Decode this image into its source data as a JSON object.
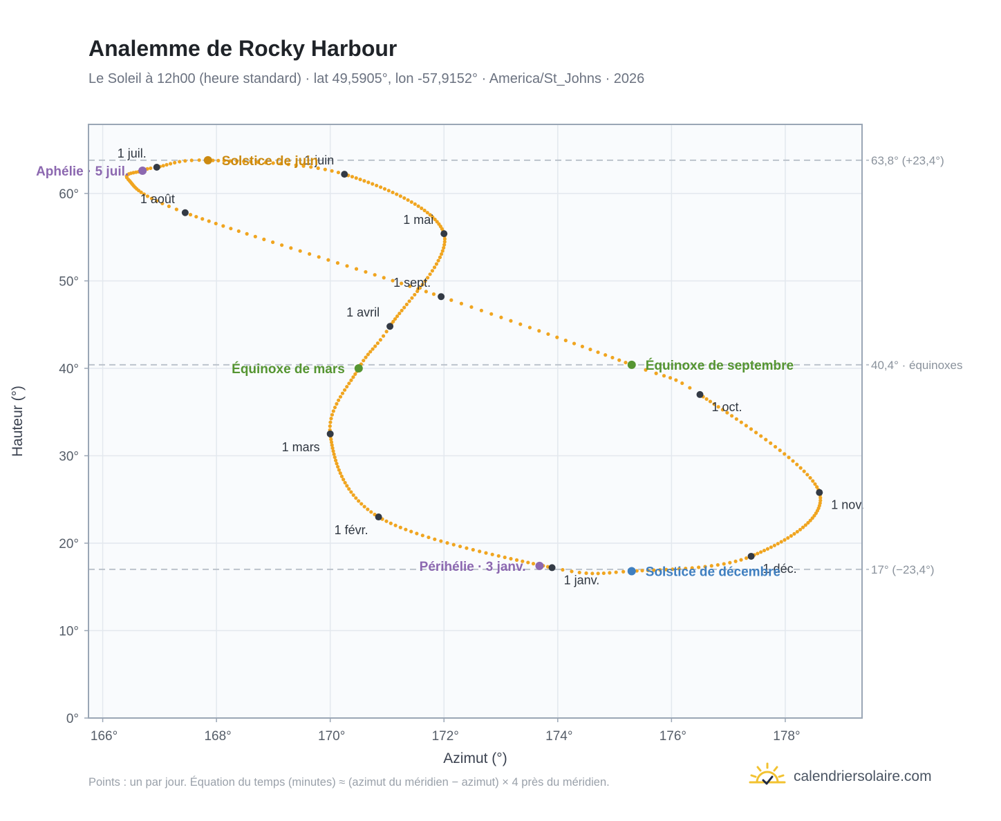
{
  "header": {
    "title": "Analemme de Rocky Harbour",
    "subtitle": "Le Soleil à 12h00 (heure standard) · lat 49,5905°, lon -57,9152° · America/St_Johns · 2026"
  },
  "footer": {
    "note": "Points : un par jour. Équation du temps (minutes) ≈ (azimut du méridien − azimut) × 4 près du méridien.",
    "brand": "calendriersolaire.com",
    "brand_icon": "sun-logo-icon"
  },
  "colors": {
    "curve": "#f0a520",
    "month_dot": "#333a45",
    "equinox": "#559531",
    "june_solstice": "#cc8a10",
    "december_solstice": "#3f7fc0",
    "aphelion_perihelion": "#8c68b0",
    "reference_line": "#bcc3cc",
    "frame": "#9aa6b5",
    "plot_bg": "#f9fbfd"
  },
  "chart_data": {
    "type": "scatter",
    "xlabel": "Azimut (°)",
    "ylabel": "Hauteur (°)",
    "xlim": [
      165.75,
      179.35
    ],
    "ylim": [
      0,
      67.9
    ],
    "xticks": [
      166,
      168,
      170,
      172,
      174,
      176,
      178
    ],
    "xtick_labels": [
      "166°",
      "168°",
      "170°",
      "172°",
      "174°",
      "176°",
      "178°"
    ],
    "yticks": [
      0,
      10,
      20,
      30,
      40,
      50,
      60
    ],
    "ytick_labels": [
      "0°",
      "10°",
      "20°",
      "30°",
      "40°",
      "50°",
      "60°"
    ],
    "grid": true,
    "series": [
      {
        "points_per_day": true,
        "days_in_year": 365,
        "anchors": [
          {
            "day": 1,
            "azimuth": 173.9,
            "altitude": 17.2
          },
          {
            "day": 32,
            "azimuth": 170.85,
            "altitude": 23.0
          },
          {
            "day": 60,
            "azimuth": 170.0,
            "altitude": 32.5
          },
          {
            "day": 79,
            "azimuth": 170.5,
            "altitude": 40.0
          },
          {
            "day": 91,
            "azimuth": 171.05,
            "altitude": 44.8
          },
          {
            "day": 121,
            "azimuth": 172.0,
            "altitude": 55.4
          },
          {
            "day": 152,
            "azimuth": 170.25,
            "altitude": 62.2
          },
          {
            "day": 172,
            "azimuth": 167.85,
            "altitude": 63.8
          },
          {
            "day": 182,
            "azimuth": 166.95,
            "altitude": 63.0
          },
          {
            "day": 186,
            "azimuth": 166.7,
            "altitude": 62.6
          },
          {
            "day": 196,
            "azimuth": 166.45,
            "altitude": 61.6
          },
          {
            "day": 213,
            "azimuth": 167.45,
            "altitude": 57.8
          },
          {
            "day": 244,
            "azimuth": 171.95,
            "altitude": 48.2
          },
          {
            "day": 266,
            "azimuth": 175.3,
            "altitude": 40.4
          },
          {
            "day": 274,
            "azimuth": 176.5,
            "altitude": 37.0
          },
          {
            "day": 305,
            "azimuth": 178.6,
            "altitude": 25.8
          },
          {
            "day": 335,
            "azimuth": 177.4,
            "altitude": 18.5
          },
          {
            "day": 355,
            "azimuth": 175.3,
            "altitude": 16.8
          },
          {
            "day": 366,
            "azimuth": 173.9,
            "altitude": 17.2
          }
        ]
      }
    ],
    "month_markers": [
      {
        "label": "1 janv.",
        "azimuth": 173.9,
        "altitude": 17.2,
        "label_pos": "below-right"
      },
      {
        "label": "1 févr.",
        "azimuth": 170.85,
        "altitude": 23.0,
        "label_pos": "below-left"
      },
      {
        "label": "1 mars",
        "azimuth": 170.0,
        "altitude": 32.5,
        "label_pos": "below-left"
      },
      {
        "label": "1 avril",
        "azimuth": 171.05,
        "altitude": 44.8,
        "label_pos": "above-left"
      },
      {
        "label": "1 mai",
        "azimuth": 172.0,
        "altitude": 55.4,
        "label_pos": "above-left"
      },
      {
        "label": "1 juin",
        "azimuth": 170.25,
        "altitude": 62.2,
        "label_pos": "above-left"
      },
      {
        "label": "1 juil.",
        "azimuth": 166.95,
        "altitude": 63.0,
        "label_pos": "above-left"
      },
      {
        "label": "1 août",
        "azimuth": 167.45,
        "altitude": 57.8,
        "label_pos": "above-left"
      },
      {
        "label": "1 sept.",
        "azimuth": 171.95,
        "altitude": 48.2,
        "label_pos": "above-left"
      },
      {
        "label": "1 oct.",
        "azimuth": 176.5,
        "altitude": 37.0,
        "label_pos": "below-right"
      },
      {
        "label": "1 nov.",
        "azimuth": 178.6,
        "altitude": 25.8,
        "label_pos": "below-right"
      },
      {
        "label": "1 déc.",
        "azimuth": 177.4,
        "altitude": 18.5,
        "label_pos": "below-right"
      }
    ],
    "events": [
      {
        "label": "Solstice de juin",
        "azimuth": 167.85,
        "altitude": 63.8,
        "color_key": "june_solstice",
        "label_side": "right"
      },
      {
        "label": "Solstice de décembre",
        "azimuth": 175.3,
        "altitude": 16.8,
        "color_key": "december_solstice",
        "label_side": "right"
      },
      {
        "label": "Équinoxe de mars",
        "azimuth": 170.5,
        "altitude": 40.0,
        "color_key": "equinox",
        "label_side": "left"
      },
      {
        "label": "Équinoxe de septembre",
        "azimuth": 175.3,
        "altitude": 40.4,
        "color_key": "equinox",
        "label_side": "right"
      },
      {
        "label": "Aphélie · 5 juil.",
        "azimuth": 166.7,
        "altitude": 62.6,
        "color_key": "aphelion_perihelion",
        "label_side": "left"
      },
      {
        "label": "Périhélie · 3 janv.",
        "azimuth": 173.68,
        "altitude": 17.4,
        "color_key": "aphelion_perihelion",
        "label_side": "left"
      }
    ],
    "reference_lines": [
      {
        "altitude": 63.8,
        "label": "63,8° (+23,4°)"
      },
      {
        "altitude": 40.4,
        "label": "40,4° · équinoxes"
      },
      {
        "altitude": 17.0,
        "label": "17° (−23,4°)"
      }
    ]
  }
}
